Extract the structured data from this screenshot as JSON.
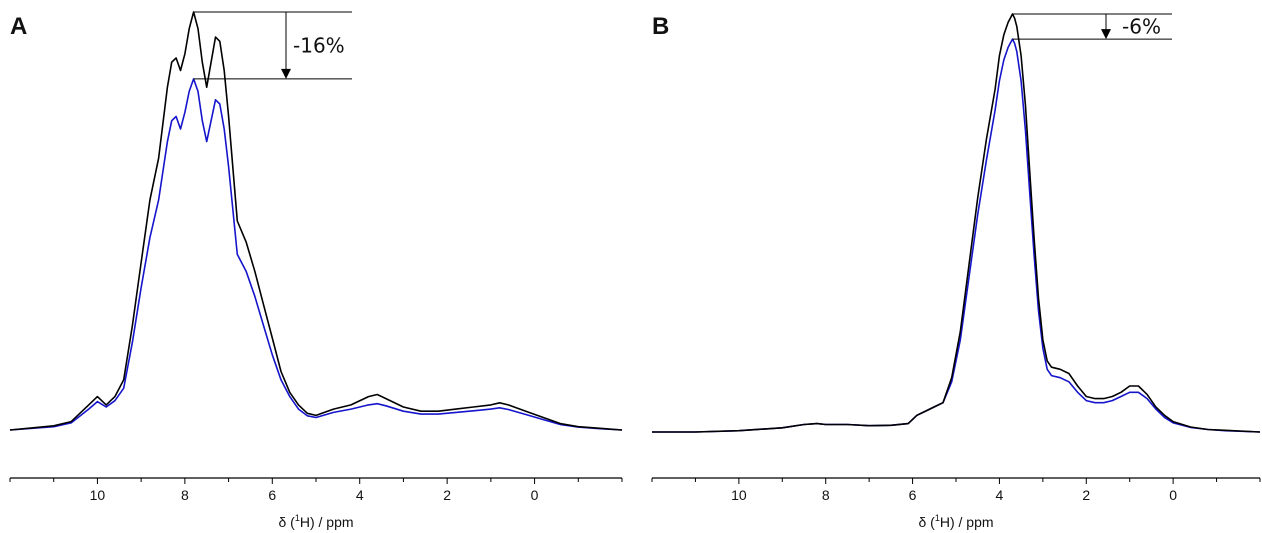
{
  "chart_data": [
    {
      "type": "line",
      "panel_label": "A",
      "xlabel_base": "δ (",
      "xlabel_sup": "1",
      "xlabel_rest": "H) / ppm",
      "xlim": [
        12.0,
        -2.0
      ],
      "ylim": [
        0.0,
        1.0
      ],
      "x_ticks": [
        10,
        8,
        6,
        4,
        2,
        0
      ],
      "x_minor_ticks": [
        12,
        11,
        10,
        9,
        8,
        7,
        6,
        5,
        4,
        3,
        2,
        1,
        0,
        -1,
        -2
      ],
      "grid": false,
      "series": [
        {
          "color": "#000000",
          "x": [
            12.0,
            11.5,
            11.0,
            10.6,
            10.2,
            10.0,
            9.8,
            9.6,
            9.4,
            9.2,
            9.0,
            8.8,
            8.6,
            8.4,
            8.3,
            8.2,
            8.1,
            8.0,
            7.9,
            7.8,
            7.7,
            7.6,
            7.5,
            7.4,
            7.3,
            7.2,
            7.1,
            7.0,
            6.8,
            6.6,
            6.4,
            6.2,
            6.0,
            5.8,
            5.6,
            5.4,
            5.2,
            5.0,
            4.6,
            4.2,
            3.8,
            3.6,
            3.4,
            3.0,
            2.6,
            2.2,
            1.8,
            1.4,
            1.0,
            0.8,
            0.6,
            0.2,
            -0.2,
            -0.6,
            -1.0,
            -1.5,
            -2.0
          ],
          "y": [
            0.0,
            0.005,
            0.01,
            0.02,
            0.06,
            0.08,
            0.06,
            0.08,
            0.12,
            0.25,
            0.4,
            0.55,
            0.65,
            0.82,
            0.88,
            0.89,
            0.86,
            0.9,
            0.96,
            1.0,
            0.96,
            0.88,
            0.82,
            0.88,
            0.94,
            0.93,
            0.86,
            0.75,
            0.5,
            0.45,
            0.38,
            0.3,
            0.22,
            0.14,
            0.09,
            0.06,
            0.04,
            0.035,
            0.05,
            0.06,
            0.08,
            0.085,
            0.075,
            0.055,
            0.045,
            0.045,
            0.05,
            0.055,
            0.06,
            0.065,
            0.06,
            0.045,
            0.03,
            0.015,
            0.008,
            0.004,
            0.0
          ]
        },
        {
          "color": "#1515cc",
          "x": [
            12.0,
            11.5,
            11.0,
            10.6,
            10.2,
            10.0,
            9.8,
            9.6,
            9.4,
            9.2,
            9.0,
            8.8,
            8.6,
            8.4,
            8.3,
            8.2,
            8.1,
            8.0,
            7.9,
            7.8,
            7.7,
            7.6,
            7.5,
            7.4,
            7.3,
            7.2,
            7.1,
            7.0,
            6.8,
            6.6,
            6.4,
            6.2,
            6.0,
            5.8,
            5.6,
            5.4,
            5.2,
            5.0,
            4.6,
            4.2,
            3.8,
            3.6,
            3.4,
            3.0,
            2.6,
            2.2,
            1.8,
            1.4,
            1.0,
            0.8,
            0.6,
            0.2,
            -0.2,
            -0.6,
            -1.0,
            -1.5,
            -2.0
          ],
          "y": [
            0.0,
            0.004,
            0.008,
            0.017,
            0.05,
            0.068,
            0.055,
            0.07,
            0.1,
            0.21,
            0.34,
            0.46,
            0.55,
            0.69,
            0.74,
            0.75,
            0.72,
            0.76,
            0.81,
            0.84,
            0.81,
            0.74,
            0.69,
            0.74,
            0.79,
            0.78,
            0.72,
            0.63,
            0.42,
            0.38,
            0.32,
            0.25,
            0.18,
            0.12,
            0.08,
            0.05,
            0.034,
            0.03,
            0.042,
            0.05,
            0.06,
            0.063,
            0.058,
            0.045,
            0.038,
            0.038,
            0.042,
            0.046,
            0.05,
            0.053,
            0.049,
            0.037,
            0.025,
            0.013,
            0.007,
            0.003,
            0.0
          ]
        }
      ],
      "annotation": {
        "text": "-16%",
        "y_top": 1.0,
        "y_bottom": 0.84
      }
    },
    {
      "type": "line",
      "panel_label": "B",
      "xlabel_base": "δ (",
      "xlabel_sup": "1",
      "xlabel_rest": "H) / ppm",
      "xlim": [
        12.0,
        -2.0
      ],
      "ylim": [
        0.0,
        1.0
      ],
      "x_ticks": [
        10,
        8,
        6,
        4,
        2,
        0
      ],
      "x_minor_ticks": [
        12,
        11,
        10,
        9,
        8,
        7,
        6,
        5,
        4,
        3,
        2,
        1,
        0,
        -1,
        -2
      ],
      "grid": false,
      "series": [
        {
          "color": "#000000",
          "x": [
            12.0,
            11.0,
            10.0,
            9.0,
            8.5,
            8.2,
            8.0,
            7.5,
            7.0,
            6.5,
            6.1,
            5.9,
            5.7,
            5.5,
            5.3,
            5.1,
            4.9,
            4.7,
            4.5,
            4.3,
            4.1,
            4.0,
            3.9,
            3.8,
            3.75,
            3.7,
            3.65,
            3.6,
            3.5,
            3.4,
            3.3,
            3.2,
            3.1,
            3.0,
            2.9,
            2.8,
            2.6,
            2.4,
            2.2,
            2.0,
            1.8,
            1.6,
            1.4,
            1.2,
            1.0,
            0.8,
            0.6,
            0.4,
            0.2,
            0.0,
            -0.4,
            -0.8,
            -1.2,
            -2.0
          ],
          "y": [
            0.0,
            0.0,
            0.003,
            0.01,
            0.018,
            0.02,
            0.018,
            0.018,
            0.015,
            0.016,
            0.02,
            0.04,
            0.05,
            0.06,
            0.07,
            0.13,
            0.24,
            0.4,
            0.56,
            0.7,
            0.82,
            0.9,
            0.95,
            0.98,
            0.99,
            1.0,
            0.99,
            0.97,
            0.9,
            0.78,
            0.62,
            0.46,
            0.32,
            0.22,
            0.17,
            0.155,
            0.15,
            0.14,
            0.11,
            0.085,
            0.08,
            0.08,
            0.085,
            0.095,
            0.11,
            0.11,
            0.09,
            0.06,
            0.04,
            0.025,
            0.012,
            0.006,
            0.004,
            0.0
          ]
        },
        {
          "color": "#1515cc",
          "x": [
            12.0,
            11.0,
            10.0,
            9.0,
            8.5,
            8.2,
            8.0,
            7.5,
            7.0,
            6.5,
            6.1,
            5.9,
            5.7,
            5.5,
            5.3,
            5.1,
            4.9,
            4.7,
            4.5,
            4.3,
            4.1,
            4.0,
            3.9,
            3.8,
            3.75,
            3.7,
            3.65,
            3.6,
            3.5,
            3.4,
            3.3,
            3.2,
            3.1,
            3.0,
            2.9,
            2.8,
            2.6,
            2.4,
            2.2,
            2.0,
            1.8,
            1.6,
            1.4,
            1.2,
            1.0,
            0.8,
            0.6,
            0.4,
            0.2,
            0.0,
            -0.4,
            -0.8,
            -1.2,
            -2.0
          ],
          "y": [
            0.0,
            0.0,
            0.003,
            0.01,
            0.018,
            0.02,
            0.018,
            0.018,
            0.015,
            0.016,
            0.02,
            0.04,
            0.05,
            0.06,
            0.07,
            0.12,
            0.22,
            0.37,
            0.52,
            0.65,
            0.77,
            0.84,
            0.89,
            0.92,
            0.93,
            0.94,
            0.93,
            0.91,
            0.84,
            0.72,
            0.57,
            0.42,
            0.29,
            0.2,
            0.15,
            0.135,
            0.13,
            0.12,
            0.095,
            0.075,
            0.07,
            0.07,
            0.075,
            0.085,
            0.095,
            0.095,
            0.08,
            0.055,
            0.035,
            0.022,
            0.011,
            0.006,
            0.003,
            0.0
          ]
        }
      ],
      "annotation": {
        "text": "-6%",
        "y_top": 1.0,
        "y_bottom": 0.94
      }
    }
  ]
}
